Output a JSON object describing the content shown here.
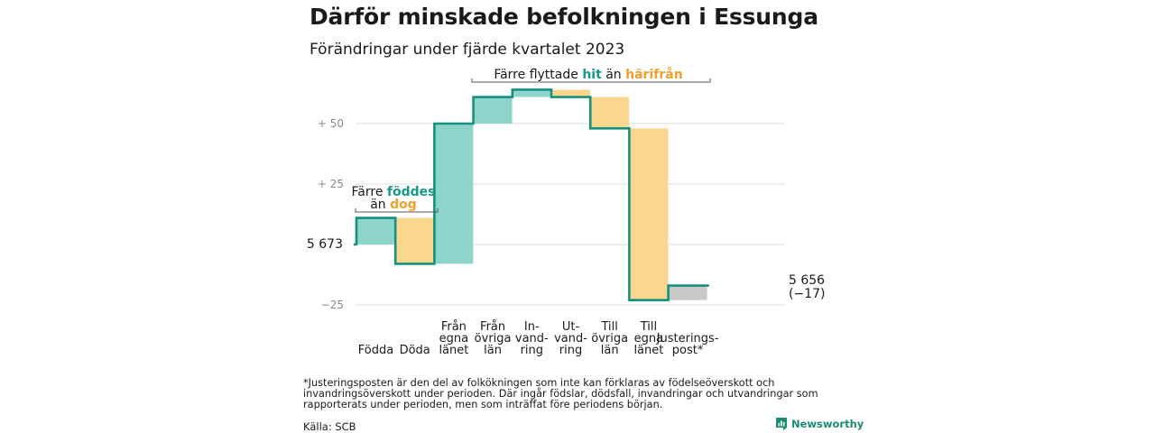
{
  "header": {
    "title": "Därför minskade befolkningen i Essunga",
    "subtitle": "Förändringar under fjärde kvartalet 2023"
  },
  "footnote": "*Justeringsposten är den del av folkökningen som inte kan förklaras av födelseöverskott och invandringsöverskott under perioden. Där ingår födslar, dödsfall, invandringar och utvandringar som rapporterats under perioden, men som inträffat före periodens början.",
  "source": "Källa: SCB",
  "brand": {
    "name": "Newsworthy",
    "icon": "newsworthy-logo-icon"
  },
  "colors": {
    "line": "#16907f",
    "increase": "#8dd5cb",
    "decrease": "#fbd68e",
    "adjustment": "#c8c8c8",
    "grid": "#dcdcdc"
  },
  "chart_data": {
    "type": "waterfall",
    "start": {
      "label": "5 673",
      "value": 5673
    },
    "end": {
      "label": "5 656",
      "sublabel": "(−17)",
      "value": 5656
    },
    "y_ticks": [
      {
        "label": "+ 50",
        "offset": 50
      },
      {
        "label": "+ 25",
        "offset": 25
      },
      {
        "label": "−25",
        "offset": -25
      }
    ],
    "ylim_offset": [
      -25,
      72
    ],
    "grid": true,
    "steps": [
      {
        "category": "Födda",
        "lines": [
          "Födda"
        ],
        "kind": "increase",
        "value": 11
      },
      {
        "category": "Döda",
        "lines": [
          "Döda"
        ],
        "kind": "decrease",
        "value": -19
      },
      {
        "category": "Från egna länet",
        "lines": [
          "Från",
          "egna",
          "länet"
        ],
        "kind": "increase",
        "value": 58
      },
      {
        "category": "Från övriga län",
        "lines": [
          "Från",
          "övriga",
          "län"
        ],
        "kind": "increase",
        "value": 11
      },
      {
        "category": "Invandring",
        "lines": [
          "In-",
          "vand-",
          "ring"
        ],
        "kind": "increase",
        "value": 3
      },
      {
        "category": "Utvandring",
        "lines": [
          "Ut-",
          "vand-",
          "ring"
        ],
        "kind": "decrease",
        "value": -3
      },
      {
        "category": "Till övriga län",
        "lines": [
          "Till",
          "övriga",
          "län"
        ],
        "kind": "decrease",
        "value": -13
      },
      {
        "category": "Till egna länet",
        "lines": [
          "Till",
          "egna",
          "länet"
        ],
        "kind": "decrease",
        "value": -71
      },
      {
        "category": "Justeringspost*",
        "lines": [
          "Justerings-",
          "post*"
        ],
        "kind": "adjustment",
        "value": 6
      }
    ],
    "annotations": {
      "births": {
        "line1_plain": "Färre ",
        "line1_teal": "föddes",
        "line2_plain": "än ",
        "line2_orange": "dog"
      },
      "migration": {
        "plain1": "Färre flyttade ",
        "teal": "hit",
        "plain2": " än ",
        "orange": "härifrån"
      }
    }
  }
}
